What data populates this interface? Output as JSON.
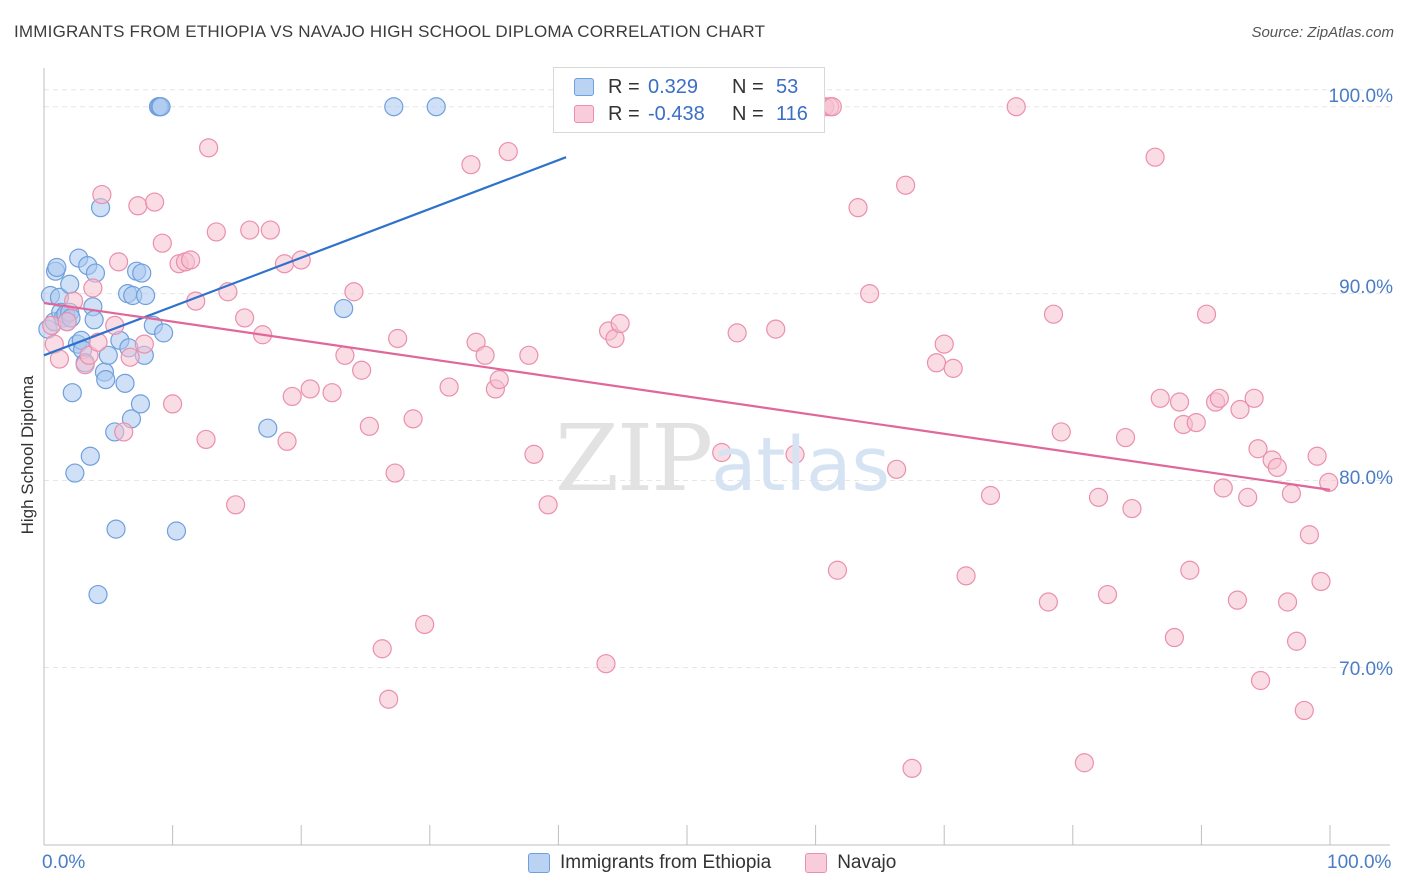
{
  "chart_data": {
    "type": "scatter",
    "title": "IMMIGRANTS FROM ETHIOPIA VS NAVAJO HIGH SCHOOL DIPLOMA CORRELATION CHART",
    "source": "Source: ZipAtlas.com",
    "xlabel": "",
    "ylabel": "High School Diploma",
    "xlim": [
      0,
      100
    ],
    "ylim": [
      60.5,
      102.5
    ],
    "y_ticks": [
      {
        "value": 100,
        "label": "100.0%"
      },
      {
        "value": 90,
        "label": "90.0%"
      },
      {
        "value": 80,
        "label": "80.0%"
      },
      {
        "value": 70,
        "label": "70.0%"
      }
    ],
    "x_tick_labels": {
      "min": "0.0%",
      "max": "100.0%"
    },
    "watermark": {
      "zip": "ZIP",
      "atlas": "atlas"
    },
    "legend": {
      "r_label": "R =",
      "n_label": "N =",
      "entries": [
        {
          "name": "Immigrants from Ethiopia",
          "r": "0.329",
          "n": "53"
        },
        {
          "name": "Navajo",
          "r": "-0.438",
          "n": "116"
        }
      ]
    },
    "colors": {
      "ethiopia_fill": "#a9c8f0",
      "ethiopia_stroke": "#6f9fdc",
      "ethiopia_line": "#2f72cc",
      "navajo_fill": "#f6bfd0",
      "navajo_stroke": "#eb8fad",
      "navajo_line": "#e0679a",
      "grid": "#e6e6e6",
      "tick_text": "#4a7cc7"
    },
    "series": [
      {
        "name": "Immigrants from Ethiopia",
        "trendline": {
          "x": [
            0,
            40.6
          ],
          "y": [
            86.7,
            97.3
          ]
        },
        "points": [
          [
            0.3,
            88.1
          ],
          [
            0.5,
            89.9
          ],
          [
            0.8,
            88.5
          ],
          [
            0.9,
            91.2
          ],
          [
            1.0,
            91.4
          ],
          [
            1.2,
            89.8
          ],
          [
            1.3,
            89.0
          ],
          [
            1.5,
            88.7
          ],
          [
            1.7,
            88.9
          ],
          [
            1.8,
            88.5
          ],
          [
            2.0,
            89.0
          ],
          [
            2.0,
            90.5
          ],
          [
            2.1,
            88.7
          ],
          [
            2.2,
            84.7
          ],
          [
            2.4,
            80.4
          ],
          [
            2.6,
            87.3
          ],
          [
            2.7,
            91.9
          ],
          [
            2.9,
            87.5
          ],
          [
            3.0,
            87.0
          ],
          [
            3.2,
            86.3
          ],
          [
            3.4,
            91.5
          ],
          [
            3.6,
            81.3
          ],
          [
            3.8,
            89.3
          ],
          [
            3.9,
            88.6
          ],
          [
            4.0,
            91.1
          ],
          [
            4.2,
            73.9
          ],
          [
            4.4,
            94.6
          ],
          [
            4.7,
            85.8
          ],
          [
            4.8,
            85.4
          ],
          [
            5.0,
            86.7
          ],
          [
            5.5,
            82.6
          ],
          [
            5.6,
            77.4
          ],
          [
            5.9,
            87.5
          ],
          [
            6.3,
            85.2
          ],
          [
            6.5,
            90.0
          ],
          [
            6.6,
            87.1
          ],
          [
            6.8,
            83.3
          ],
          [
            6.9,
            89.9
          ],
          [
            7.2,
            91.2
          ],
          [
            7.5,
            84.1
          ],
          [
            7.6,
            91.1
          ],
          [
            7.8,
            86.7
          ],
          [
            7.9,
            89.9
          ],
          [
            8.5,
            88.3
          ],
          [
            8.9,
            100.0
          ],
          [
            9.0,
            100.0
          ],
          [
            9.1,
            100.0
          ],
          [
            9.3,
            87.9
          ],
          [
            10.3,
            77.3
          ],
          [
            17.4,
            82.8
          ],
          [
            23.3,
            89.2
          ],
          [
            27.2,
            100.0
          ],
          [
            30.5,
            100.0
          ]
        ]
      },
      {
        "name": "Navajo",
        "trendline": {
          "x": [
            0,
            100
          ],
          "y": [
            89.5,
            79.5
          ]
        },
        "points": [
          [
            0.6,
            88.3
          ],
          [
            0.8,
            87.3
          ],
          [
            1.2,
            86.5
          ],
          [
            1.8,
            88.5
          ],
          [
            2.3,
            89.6
          ],
          [
            3.2,
            86.2
          ],
          [
            3.5,
            86.7
          ],
          [
            3.8,
            90.3
          ],
          [
            4.2,
            87.4
          ],
          [
            4.5,
            95.3
          ],
          [
            5.5,
            88.3
          ],
          [
            5.8,
            91.7
          ],
          [
            6.2,
            82.6
          ],
          [
            6.7,
            86.6
          ],
          [
            7.3,
            94.7
          ],
          [
            7.8,
            87.3
          ],
          [
            8.6,
            94.9
          ],
          [
            9.2,
            92.7
          ],
          [
            10.0,
            84.1
          ],
          [
            10.5,
            91.6
          ],
          [
            11.0,
            91.7
          ],
          [
            11.4,
            91.8
          ],
          [
            11.8,
            89.6
          ],
          [
            12.6,
            82.2
          ],
          [
            12.8,
            97.8
          ],
          [
            13.4,
            93.3
          ],
          [
            14.3,
            90.1
          ],
          [
            14.9,
            78.7
          ],
          [
            15.6,
            88.7
          ],
          [
            16.0,
            93.4
          ],
          [
            17.0,
            87.8
          ],
          [
            17.6,
            93.4
          ],
          [
            18.7,
            91.6
          ],
          [
            18.9,
            82.1
          ],
          [
            19.3,
            84.5
          ],
          [
            20.0,
            91.8
          ],
          [
            20.7,
            84.9
          ],
          [
            22.4,
            84.7
          ],
          [
            23.4,
            86.7
          ],
          [
            24.1,
            90.1
          ],
          [
            24.7,
            85.9
          ],
          [
            25.3,
            82.9
          ],
          [
            26.3,
            71.0
          ],
          [
            26.8,
            68.3
          ],
          [
            27.3,
            80.4
          ],
          [
            27.5,
            87.6
          ],
          [
            28.7,
            83.3
          ],
          [
            29.6,
            72.3
          ],
          [
            31.5,
            85.0
          ],
          [
            33.2,
            96.9
          ],
          [
            33.6,
            87.4
          ],
          [
            34.3,
            86.7
          ],
          [
            35.1,
            84.9
          ],
          [
            35.4,
            85.4
          ],
          [
            36.1,
            97.6
          ],
          [
            37.7,
            86.7
          ],
          [
            38.1,
            81.4
          ],
          [
            39.2,
            78.7
          ],
          [
            43.7,
            70.2
          ],
          [
            43.9,
            88.0
          ],
          [
            44.4,
            87.6
          ],
          [
            44.8,
            88.4
          ],
          [
            52.7,
            81.5
          ],
          [
            53.7,
            100.0
          ],
          [
            53.9,
            87.9
          ],
          [
            56.9,
            88.1
          ],
          [
            58.4,
            81.4
          ],
          [
            60.7,
            100.0
          ],
          [
            61.1,
            100.0
          ],
          [
            61.3,
            100.0
          ],
          [
            61.7,
            75.2
          ],
          [
            63.3,
            94.6
          ],
          [
            64.2,
            90.0
          ],
          [
            66.3,
            80.6
          ],
          [
            67.0,
            95.8
          ],
          [
            67.5,
            64.6
          ],
          [
            69.4,
            86.3
          ],
          [
            70.0,
            87.3
          ],
          [
            70.7,
            86.0
          ],
          [
            71.7,
            74.9
          ],
          [
            73.6,
            79.2
          ],
          [
            75.6,
            100.0
          ],
          [
            78.1,
            73.5
          ],
          [
            78.5,
            88.9
          ],
          [
            79.1,
            82.6
          ],
          [
            80.9,
            64.9
          ],
          [
            82.0,
            79.1
          ],
          [
            82.7,
            73.9
          ],
          [
            84.1,
            82.3
          ],
          [
            84.6,
            78.5
          ],
          [
            86.4,
            97.3
          ],
          [
            86.8,
            84.4
          ],
          [
            87.9,
            71.6
          ],
          [
            88.3,
            84.2
          ],
          [
            88.6,
            83.0
          ],
          [
            89.1,
            75.2
          ],
          [
            89.6,
            83.1
          ],
          [
            90.4,
            88.9
          ],
          [
            91.1,
            84.2
          ],
          [
            91.4,
            84.4
          ],
          [
            91.7,
            79.6
          ],
          [
            92.8,
            73.6
          ],
          [
            93.0,
            83.8
          ],
          [
            93.6,
            79.1
          ],
          [
            94.1,
            84.4
          ],
          [
            94.4,
            81.7
          ],
          [
            94.6,
            69.3
          ],
          [
            95.5,
            81.1
          ],
          [
            95.9,
            80.7
          ],
          [
            96.7,
            73.5
          ],
          [
            97.0,
            79.3
          ],
          [
            97.4,
            71.4
          ],
          [
            98.0,
            67.7
          ],
          [
            98.4,
            77.1
          ],
          [
            99.0,
            81.3
          ],
          [
            99.3,
            74.6
          ],
          [
            99.9,
            79.9
          ]
        ]
      }
    ]
  }
}
